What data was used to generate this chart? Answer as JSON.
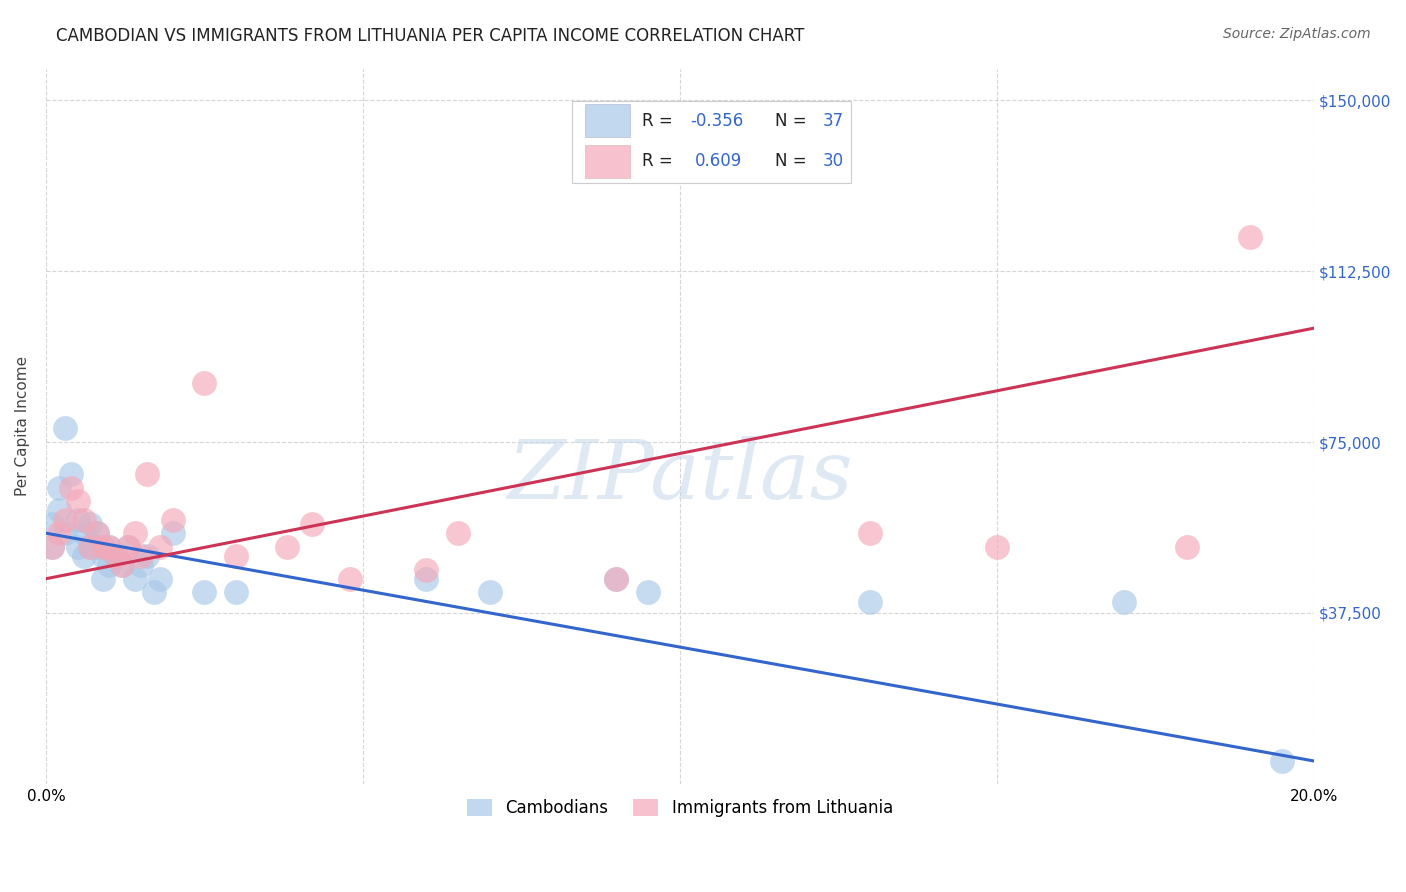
{
  "title": "CAMBODIAN VS IMMIGRANTS FROM LITHUANIA PER CAPITA INCOME CORRELATION CHART",
  "source": "Source: ZipAtlas.com",
  "ylabel": "Per Capita Income",
  "ytick_vals": [
    37500,
    75000,
    112500,
    150000
  ],
  "ytick_labels": [
    "$37,500",
    "$75,000",
    "$112,500",
    "$150,000"
  ],
  "xlim": [
    0.0,
    0.2
  ],
  "ylim": [
    0,
    157000
  ],
  "blue_color": "#a8c8e8",
  "pink_color": "#f4a8b8",
  "blue_line_color": "#3366cc",
  "pink_line_color": "#cc3355",
  "watermark": "ZIPatlas",
  "cambodian_label": "Cambodians",
  "lithuania_label": "Immigrants from Lithuania",
  "blue_R": -0.356,
  "blue_N": 37,
  "pink_R": 0.609,
  "pink_N": 30,
  "blue_line_x": [
    0.0,
    0.2
  ],
  "blue_line_y": [
    55000,
    5000
  ],
  "pink_line_x": [
    0.0,
    0.2
  ],
  "pink_line_y": [
    45000,
    100000
  ],
  "blue_scatter_x": [
    0.001,
    0.001,
    0.002,
    0.002,
    0.003,
    0.003,
    0.004,
    0.005,
    0.005,
    0.006,
    0.006,
    0.007,
    0.007,
    0.008,
    0.008,
    0.009,
    0.009,
    0.01,
    0.01,
    0.011,
    0.012,
    0.013,
    0.014,
    0.015,
    0.016,
    0.017,
    0.018,
    0.02,
    0.025,
    0.03,
    0.06,
    0.07,
    0.09,
    0.095,
    0.13,
    0.17,
    0.195
  ],
  "blue_scatter_y": [
    52000,
    57000,
    60000,
    65000,
    55000,
    78000,
    68000,
    58000,
    52000,
    55000,
    50000,
    52000,
    57000,
    52000,
    55000,
    50000,
    45000,
    48000,
    52000,
    50000,
    48000,
    52000,
    45000,
    48000,
    50000,
    42000,
    45000,
    55000,
    42000,
    42000,
    45000,
    42000,
    45000,
    42000,
    40000,
    40000,
    5000
  ],
  "pink_scatter_x": [
    0.001,
    0.002,
    0.003,
    0.004,
    0.005,
    0.006,
    0.007,
    0.008,
    0.009,
    0.01,
    0.011,
    0.012,
    0.013,
    0.014,
    0.015,
    0.016,
    0.018,
    0.02,
    0.025,
    0.03,
    0.038,
    0.042,
    0.048,
    0.06,
    0.065,
    0.09,
    0.13,
    0.15,
    0.18,
    0.19
  ],
  "pink_scatter_y": [
    52000,
    55000,
    58000,
    65000,
    62000,
    58000,
    52000,
    55000,
    52000,
    52000,
    50000,
    48000,
    52000,
    55000,
    50000,
    68000,
    52000,
    58000,
    88000,
    50000,
    52000,
    57000,
    45000,
    47000,
    55000,
    45000,
    55000,
    52000,
    52000,
    120000
  ],
  "background_color": "#ffffff",
  "grid_color": "#cccccc",
  "title_fontsize": 12,
  "source_fontsize": 10,
  "axis_label_fontsize": 11,
  "tick_fontsize": 11,
  "legend_fontsize": 12
}
